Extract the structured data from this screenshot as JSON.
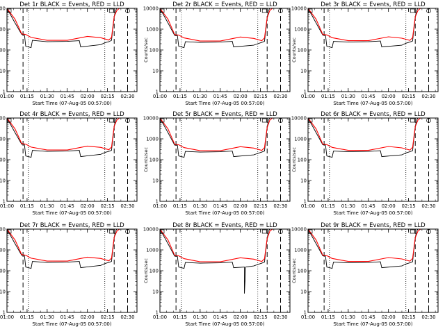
{
  "figure": {
    "ylabel": "Counts/sec",
    "xlabel": "Start Time (07-Aug-05 00:57:00)",
    "colors": {
      "events": "#000000",
      "lld": "#ff0000"
    }
  },
  "chart_data": [
    {
      "type": "line",
      "title": "Det 1r BLACK = Events, RED = LLD",
      "yscale": "log",
      "ylim": [
        1,
        10000
      ],
      "yticks": [
        "1",
        "10",
        "100",
        "1000",
        "10000"
      ],
      "xlim": [
        "01:00",
        "02:37"
      ],
      "xticks": [
        "01:00",
        "01:15",
        "01:30",
        "01:45",
        "02:00",
        "02:15",
        "02:30"
      ],
      "series": [
        {
          "name": "Events",
          "x": [
            "01:00",
            "01:06",
            "01:11",
            "01:13",
            "01:14",
            "01:18",
            "01:19",
            "01:30",
            "01:45",
            "01:54",
            "01:55",
            "02:10",
            "02:13",
            "02:14",
            "02:16",
            "02:18",
            "02:20",
            "02:21",
            "02:22",
            "02:24"
          ],
          "y": [
            10000,
            2000,
            560,
            560,
            150,
            130,
            290,
            250,
            260,
            280,
            140,
            180,
            220,
            230,
            250,
            290,
            4000,
            8000,
            10000,
            10000
          ]
        },
        {
          "name": "LLD",
          "x": [
            "01:00",
            "01:06",
            "01:11",
            "01:14",
            "01:18",
            "01:30",
            "01:45",
            "02:00",
            "02:10",
            "02:16",
            "02:18",
            "02:20",
            "02:22",
            "02:24"
          ],
          "y": [
            10000,
            3000,
            600,
            560,
            400,
            290,
            290,
            450,
            390,
            300,
            400,
            4000,
            8000,
            10000
          ]
        }
      ],
      "markers": {
        "dashed": [
          "01:12",
          "02:20",
          "02:30"
        ],
        "dotted": [
          "01:16",
          "02:13"
        ]
      }
    },
    {
      "type": "line",
      "title": "Det 2r BLACK = Events, RED = LLD",
      "yscale": "log",
      "ylim": [
        1,
        10000
      ],
      "yticks": [
        "1",
        "10",
        "100",
        "1000",
        "10000"
      ],
      "xlim": [
        "01:00",
        "02:37"
      ],
      "xticks": [
        "01:00",
        "01:15",
        "01:30",
        "01:45",
        "02:00",
        "02:15",
        "02:30"
      ],
      "series": [
        {
          "name": "Events",
          "x": [
            "01:00",
            "01:06",
            "01:11",
            "01:13",
            "01:14",
            "01:18",
            "01:19",
            "01:30",
            "01:45",
            "01:54",
            "01:55",
            "02:10",
            "02:13",
            "02:14",
            "02:16",
            "02:18",
            "02:20",
            "02:21",
            "02:22",
            "02:24"
          ],
          "y": [
            10000,
            2000,
            500,
            500,
            150,
            130,
            250,
            230,
            240,
            260,
            140,
            170,
            200,
            210,
            230,
            260,
            3500,
            8000,
            10000,
            10000
          ]
        },
        {
          "name": "LLD",
          "x": [
            "01:00",
            "01:06",
            "01:11",
            "01:14",
            "01:18",
            "01:30",
            "01:45",
            "02:00",
            "02:10",
            "02:16",
            "02:18",
            "02:20",
            "02:22",
            "02:24"
          ],
          "y": [
            10000,
            3000,
            550,
            520,
            380,
            270,
            270,
            420,
            360,
            280,
            380,
            3500,
            8000,
            10000
          ]
        }
      ],
      "markers": {
        "dashed": [
          "01:12",
          "02:20",
          "02:30"
        ],
        "dotted": [
          "01:16",
          "02:13"
        ]
      }
    },
    {
      "type": "line",
      "title": "Det 3r BLACK = Events, RED = LLD",
      "yscale": "log",
      "ylim": [
        1,
        10000
      ],
      "yticks": [
        "1",
        "10",
        "100",
        "1000",
        "10000"
      ],
      "xlim": [
        "01:00",
        "02:37"
      ],
      "xticks": [
        "01:00",
        "01:15",
        "01:30",
        "01:45",
        "02:00",
        "02:15",
        "02:30"
      ],
      "series": [
        {
          "name": "Events",
          "x": [
            "01:00",
            "01:06",
            "01:11",
            "01:13",
            "01:14",
            "01:18",
            "01:19",
            "01:30",
            "01:45",
            "01:54",
            "01:55",
            "02:10",
            "02:13",
            "02:14",
            "02:16",
            "02:18",
            "02:20",
            "02:21",
            "02:22",
            "02:24"
          ],
          "y": [
            10000,
            2000,
            520,
            520,
            150,
            130,
            260,
            240,
            250,
            270,
            140,
            170,
            210,
            220,
            240,
            270,
            3800,
            8000,
            10000,
            10000
          ]
        },
        {
          "name": "LLD",
          "x": [
            "01:00",
            "01:06",
            "01:11",
            "01:14",
            "01:18",
            "01:30",
            "01:45",
            "02:00",
            "02:10",
            "02:16",
            "02:18",
            "02:20",
            "02:22",
            "02:24"
          ],
          "y": [
            10000,
            3000,
            560,
            530,
            390,
            280,
            280,
            430,
            370,
            290,
            390,
            3800,
            8000,
            10000
          ]
        }
      ],
      "markers": {
        "dashed": [
          "01:12",
          "02:20",
          "02:30"
        ],
        "dotted": [
          "01:16",
          "02:13"
        ]
      }
    },
    {
      "type": "line",
      "title": "Det 4r BLACK = Events, RED = LLD",
      "yscale": "log",
      "ylim": [
        1,
        10000
      ],
      "yticks": [
        "1",
        "10",
        "100",
        "1000",
        "10000"
      ],
      "xlim": [
        "01:00",
        "02:37"
      ],
      "xticks": [
        "01:00",
        "01:15",
        "01:30",
        "01:45",
        "02:00",
        "02:15",
        "02:30"
      ],
      "series": [
        {
          "name": "Events",
          "x": [
            "01:00",
            "01:06",
            "01:11",
            "01:13",
            "01:14",
            "01:18",
            "01:19",
            "01:30",
            "01:45",
            "01:54",
            "01:55",
            "02:10",
            "02:13",
            "02:14",
            "02:16",
            "02:18",
            "02:20",
            "02:21",
            "02:22",
            "02:24"
          ],
          "y": [
            10000,
            2000,
            550,
            550,
            150,
            130,
            280,
            250,
            260,
            280,
            140,
            180,
            220,
            230,
            250,
            280,
            4000,
            8000,
            10000,
            10000
          ]
        },
        {
          "name": "LLD",
          "x": [
            "01:00",
            "01:06",
            "01:11",
            "01:14",
            "01:18",
            "01:30",
            "01:45",
            "02:00",
            "02:10",
            "02:16",
            "02:18",
            "02:20",
            "02:22",
            "02:24"
          ],
          "y": [
            10000,
            3000,
            600,
            560,
            400,
            290,
            290,
            450,
            390,
            300,
            400,
            4000,
            8000,
            10000
          ]
        }
      ],
      "markers": {
        "dashed": [
          "01:12",
          "02:20",
          "02:30"
        ],
        "dotted": [
          "01:16",
          "02:13"
        ]
      }
    },
    {
      "type": "line",
      "title": "Det 5r BLACK = Events, RED = LLD",
      "yscale": "log",
      "ylim": [
        1,
        10000
      ],
      "yticks": [
        "1",
        "10",
        "100",
        "1000",
        "10000"
      ],
      "xlim": [
        "01:00",
        "02:37"
      ],
      "xticks": [
        "01:00",
        "01:15",
        "01:30",
        "01:45",
        "02:00",
        "02:15",
        "02:30"
      ],
      "series": [
        {
          "name": "Events",
          "x": [
            "01:00",
            "01:06",
            "01:11",
            "01:13",
            "01:14",
            "01:18",
            "01:19",
            "01:30",
            "01:45",
            "01:54",
            "01:55",
            "02:10",
            "02:13",
            "02:14",
            "02:16",
            "02:18",
            "02:20",
            "02:21",
            "02:22",
            "02:24"
          ],
          "y": [
            10000,
            2000,
            500,
            500,
            150,
            130,
            250,
            230,
            240,
            260,
            140,
            170,
            200,
            210,
            230,
            260,
            3500,
            8000,
            10000,
            10000
          ]
        },
        {
          "name": "LLD",
          "x": [
            "01:00",
            "01:06",
            "01:11",
            "01:14",
            "01:18",
            "01:30",
            "01:45",
            "02:00",
            "02:10",
            "02:16",
            "02:18",
            "02:20",
            "02:22",
            "02:24"
          ],
          "y": [
            10000,
            3000,
            550,
            520,
            380,
            270,
            270,
            420,
            360,
            280,
            380,
            3500,
            8000,
            10000
          ]
        }
      ],
      "markers": {
        "dashed": [
          "01:12",
          "02:20",
          "02:30"
        ],
        "dotted": [
          "01:16",
          "02:13"
        ]
      }
    },
    {
      "type": "line",
      "title": "Det 6r BLACK = Events, RED = LLD",
      "yscale": "log",
      "ylim": [
        1,
        10000
      ],
      "yticks": [
        "1",
        "10",
        "100",
        "1000",
        "10000"
      ],
      "xlim": [
        "01:00",
        "02:37"
      ],
      "xticks": [
        "01:00",
        "01:15",
        "01:30",
        "01:45",
        "02:00",
        "02:15",
        "02:30"
      ],
      "series": [
        {
          "name": "Events",
          "x": [
            "01:00",
            "01:06",
            "01:11",
            "01:13",
            "01:14",
            "01:18",
            "01:19",
            "01:30",
            "01:45",
            "01:54",
            "01:55",
            "02:10",
            "02:13",
            "02:14",
            "02:16",
            "02:18",
            "02:20",
            "02:21",
            "02:22",
            "02:24"
          ],
          "y": [
            10000,
            2000,
            520,
            520,
            150,
            130,
            260,
            240,
            250,
            270,
            140,
            170,
            210,
            220,
            240,
            270,
            3800,
            8000,
            10000,
            10000
          ]
        },
        {
          "name": "LLD",
          "x": [
            "01:00",
            "01:06",
            "01:11",
            "01:14",
            "01:18",
            "01:30",
            "01:45",
            "02:00",
            "02:10",
            "02:16",
            "02:18",
            "02:20",
            "02:22",
            "02:24"
          ],
          "y": [
            10000,
            3000,
            560,
            530,
            390,
            280,
            280,
            430,
            370,
            290,
            390,
            3800,
            8000,
            10000
          ]
        }
      ],
      "markers": {
        "dashed": [
          "01:12",
          "02:20",
          "02:30"
        ],
        "dotted": [
          "01:16",
          "02:13"
        ]
      }
    },
    {
      "type": "line",
      "title": "Det 7r BLACK = Events, RED = LLD",
      "yscale": "log",
      "ylim": [
        1,
        10000
      ],
      "yticks": [
        "1",
        "10",
        "100",
        "1000",
        "10000"
      ],
      "xlim": [
        "01:00",
        "02:37"
      ],
      "xticks": [
        "01:00",
        "01:15",
        "01:30",
        "01:45",
        "02:00",
        "02:15",
        "02:30"
      ],
      "series": [
        {
          "name": "Events",
          "x": [
            "01:00",
            "01:06",
            "01:11",
            "01:13",
            "01:14",
            "01:18",
            "01:19",
            "01:30",
            "01:45",
            "01:54",
            "01:55",
            "02:10",
            "02:13",
            "02:14",
            "02:16",
            "02:18",
            "02:20",
            "02:21",
            "02:22",
            "02:24"
          ],
          "y": [
            10000,
            2000,
            550,
            550,
            150,
            130,
            280,
            250,
            260,
            280,
            140,
            180,
            220,
            230,
            250,
            280,
            4000,
            8000,
            10000,
            10000
          ]
        },
        {
          "name": "LLD",
          "x": [
            "01:00",
            "01:06",
            "01:11",
            "01:14",
            "01:18",
            "01:30",
            "01:45",
            "02:00",
            "02:10",
            "02:16",
            "02:18",
            "02:20",
            "02:22",
            "02:24"
          ],
          "y": [
            10000,
            3000,
            600,
            560,
            400,
            290,
            290,
            450,
            390,
            300,
            400,
            4000,
            8000,
            10000
          ]
        }
      ],
      "markers": {
        "dashed": [
          "01:12",
          "02:20",
          "02:30"
        ],
        "dotted": [
          "01:16",
          "02:13"
        ]
      }
    },
    {
      "type": "line",
      "title": "Det 8r BLACK = Events, RED = LLD",
      "yscale": "log",
      "ylim": [
        1,
        10000
      ],
      "yticks": [
        "1",
        "10",
        "100",
        "1000",
        "10000"
      ],
      "xlim": [
        "01:00",
        "02:37"
      ],
      "xticks": [
        "01:00",
        "01:15",
        "01:30",
        "01:45",
        "02:00",
        "02:15",
        "02:30"
      ],
      "series": [
        {
          "name": "Events",
          "x": [
            "01:00",
            "01:06",
            "01:11",
            "01:13",
            "01:14",
            "01:18",
            "01:19",
            "01:30",
            "01:45",
            "01:54",
            "01:55",
            "02:03",
            "02:03",
            "02:04",
            "02:10",
            "02:13",
            "02:14",
            "02:16",
            "02:18",
            "02:20",
            "02:21",
            "02:22",
            "02:24"
          ],
          "y": [
            10000,
            2000,
            500,
            500,
            150,
            130,
            250,
            230,
            240,
            260,
            140,
            150,
            8,
            150,
            170,
            200,
            210,
            230,
            260,
            3500,
            8000,
            10000,
            10000
          ]
        },
        {
          "name": "LLD",
          "x": [
            "01:00",
            "01:06",
            "01:11",
            "01:14",
            "01:18",
            "01:30",
            "01:45",
            "02:00",
            "02:10",
            "02:16",
            "02:18",
            "02:20",
            "02:22",
            "02:24"
          ],
          "y": [
            10000,
            3000,
            550,
            520,
            380,
            270,
            270,
            420,
            360,
            280,
            380,
            3500,
            8000,
            10000
          ]
        }
      ],
      "markers": {
        "dashed": [
          "01:12",
          "02:20",
          "02:30"
        ],
        "dotted": [
          "01:16",
          "02:13"
        ]
      }
    },
    {
      "type": "line",
      "title": "Det 9r BLACK = Events, RED = LLD",
      "yscale": "log",
      "ylim": [
        1,
        10000
      ],
      "yticks": [
        "1",
        "10",
        "100",
        "1000",
        "10000"
      ],
      "xlim": [
        "01:00",
        "02:37"
      ],
      "xticks": [
        "01:00",
        "01:15",
        "01:30",
        "01:45",
        "02:00",
        "02:15",
        "02:30"
      ],
      "series": [
        {
          "name": "Events",
          "x": [
            "01:00",
            "01:06",
            "01:11",
            "01:13",
            "01:14",
            "01:18",
            "01:19",
            "01:30",
            "01:45",
            "01:54",
            "01:55",
            "02:10",
            "02:13",
            "02:14",
            "02:16",
            "02:18",
            "02:20",
            "02:21",
            "02:22",
            "02:24"
          ],
          "y": [
            10000,
            2000,
            520,
            520,
            150,
            130,
            260,
            240,
            250,
            270,
            140,
            170,
            210,
            220,
            240,
            270,
            3800,
            8000,
            10000,
            10000
          ]
        },
        {
          "name": "LLD",
          "x": [
            "01:00",
            "01:06",
            "01:11",
            "01:14",
            "01:18",
            "01:30",
            "01:45",
            "02:00",
            "02:10",
            "02:16",
            "02:18",
            "02:20",
            "02:22",
            "02:24"
          ],
          "y": [
            10000,
            3000,
            560,
            530,
            390,
            280,
            280,
            430,
            370,
            290,
            390,
            3800,
            8000,
            10000
          ]
        }
      ],
      "markers": {
        "dashed": [
          "01:12",
          "02:20",
          "02:30"
        ],
        "dotted": [
          "01:16",
          "02:13"
        ]
      }
    }
  ]
}
